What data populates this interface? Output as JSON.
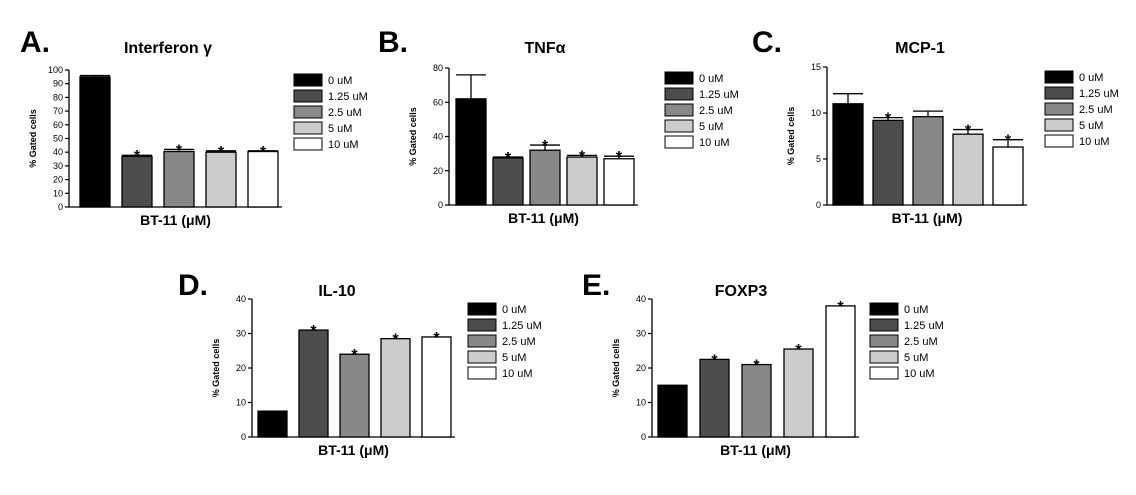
{
  "legend": {
    "entries": [
      "0 uM",
      "1.25 uM",
      "2.5 uM",
      "5 uM",
      "10 uM"
    ],
    "colors": [
      "#000000",
      "#4d4d4d",
      "#888888",
      "#cccccc",
      "#ffffff"
    ]
  },
  "chart_data": [
    {
      "type": "bar",
      "letter": "A.",
      "title": "Interferon γ",
      "xlabel": "BT-11 (μM)",
      "ylabel": "% Gated cells",
      "categories": [
        "0 uM",
        "1.25 uM",
        "2.5 uM",
        "5 uM",
        "10 uM"
      ],
      "values": [
        95,
        37,
        40.5,
        40,
        40.5
      ],
      "errors": [
        1,
        0.8,
        1.5,
        1,
        0.5
      ],
      "significant": [
        false,
        true,
        true,
        true,
        true
      ],
      "ylim": [
        0,
        100
      ],
      "yticks": [
        0,
        10,
        20,
        30,
        40,
        50,
        60,
        70,
        80,
        90,
        100
      ],
      "legend": "right"
    },
    {
      "type": "bar",
      "letter": "B.",
      "title": "TNFα",
      "xlabel": "BT-11 (μM)",
      "ylabel": "% Gated cells",
      "categories": [
        "0 uM",
        "1.25 uM",
        "2.5 uM",
        "5 uM",
        "10 uM"
      ],
      "values": [
        62,
        27.5,
        32,
        28,
        27
      ],
      "errors": [
        14,
        0.5,
        3,
        1,
        1.5
      ],
      "significant": [
        false,
        true,
        true,
        true,
        true
      ],
      "ylim": [
        0,
        80
      ],
      "yticks": [
        0,
        20,
        40,
        60,
        80
      ],
      "legend": "right"
    },
    {
      "type": "bar",
      "letter": "C.",
      "title": "MCP-1",
      "xlabel": "BT-11 (μM)",
      "ylabel": "% Gated cells",
      "categories": [
        "0 uM",
        "1.25 uM",
        "2.5 uM",
        "5 uM",
        "10 uM"
      ],
      "values": [
        11,
        9.2,
        9.6,
        7.7,
        6.3
      ],
      "errors": [
        1.1,
        0.3,
        0.6,
        0.5,
        0.8
      ],
      "significant": [
        false,
        true,
        false,
        true,
        true
      ],
      "ylim": [
        0,
        15
      ],
      "yticks": [
        0,
        5,
        10,
        15
      ],
      "legend": "right"
    },
    {
      "type": "bar",
      "letter": "D.",
      "title": "IL-10",
      "xlabel": "BT-11 (μM)",
      "ylabel": "% Gated cells",
      "categories": [
        "0 uM",
        "1.25 uM",
        "2.5 uM",
        "5 uM",
        "10 uM"
      ],
      "values": [
        7.5,
        31,
        24,
        28.5,
        29
      ],
      "errors": [
        0,
        0,
        0,
        0,
        0
      ],
      "significant": [
        false,
        true,
        true,
        true,
        true
      ],
      "ylim": [
        0,
        40
      ],
      "yticks": [
        0,
        10,
        20,
        30,
        40
      ],
      "legend": "right"
    },
    {
      "type": "bar",
      "letter": "E.",
      "title": "FOXP3",
      "xlabel": "BT-11 (μM)",
      "ylabel": "% Gated cells",
      "categories": [
        "0 uM",
        "1.25 uM",
        "2.5 uM",
        "5 uM",
        "10 uM"
      ],
      "values": [
        15,
        22.5,
        21,
        25.5,
        38
      ],
      "errors": [
        0,
        0,
        0,
        0,
        0
      ],
      "significant": [
        false,
        true,
        true,
        true,
        true
      ],
      "ylim": [
        0,
        40
      ],
      "yticks": [
        0,
        10,
        20,
        30,
        40
      ],
      "legend": "right"
    }
  ]
}
